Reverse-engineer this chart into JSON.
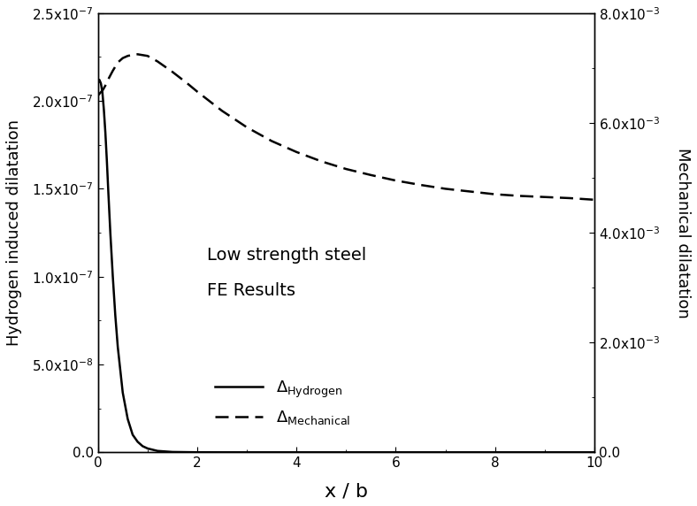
{
  "xlabel": "x / b",
  "ylabel_left": "Hydrogen induced dilatation",
  "ylabel_right": "Mechanical dilatation",
  "xlim": [
    0,
    10
  ],
  "ylim_left": [
    0,
    2.5e-07
  ],
  "ylim_right": [
    0,
    0.008
  ],
  "yticks_left": [
    0.0,
    5e-08,
    1e-07,
    1.5e-07,
    2e-07,
    2.5e-07
  ],
  "yticks_left_labels": [
    "0.0",
    "5.0x10$^{-8}$",
    "1.0x10$^{-7}$",
    "1.5x10$^{-7}$",
    "2.0x10$^{-7}$",
    "2.5x10$^{-7}$"
  ],
  "yticks_right": [
    0.0,
    0.002,
    0.004,
    0.006,
    0.008
  ],
  "yticks_right_labels": [
    "0.0",
    "2.0x10$^{-3}$",
    "4.0x10$^{-3}$",
    "6.0x10$^{-3}$",
    "8.0x10$^{-3}$"
  ],
  "xticks": [
    0,
    2,
    4,
    6,
    8,
    10
  ],
  "annotation_line1": "Low strength steel",
  "annotation_line2": "FE Results",
  "hydrogen_x": [
    0.0,
    0.03,
    0.06,
    0.09,
    0.12,
    0.15,
    0.18,
    0.21,
    0.25,
    0.3,
    0.35,
    0.4,
    0.5,
    0.6,
    0.7,
    0.8,
    0.9,
    1.0,
    1.2,
    1.5,
    2.0,
    2.5,
    3.0,
    4.0,
    5.0,
    6.0,
    7.0,
    8.0,
    9.0,
    10.0
  ],
  "hydrogen_y": [
    2.1e-07,
    2.12e-07,
    2.1e-07,
    2.05e-07,
    1.95e-07,
    1.82e-07,
    1.66e-07,
    1.48e-07,
    1.25e-07,
    1e-07,
    7.8e-08,
    6e-08,
    3.4e-08,
    1.9e-08,
    1e-08,
    6e-09,
    3.5e-09,
    2.2e-09,
    8e-10,
    2e-10,
    3e-11,
    5e-12,
    8e-13,
    2e-14,
    3e-16,
    5e-18,
    8e-20,
    1e-21,
    2e-23,
    3e-25
  ],
  "mechanical_x": [
    0.0,
    0.05,
    0.1,
    0.15,
    0.2,
    0.3,
    0.4,
    0.5,
    0.6,
    0.7,
    0.8,
    1.0,
    1.2,
    1.5,
    1.8,
    2.0,
    2.5,
    3.0,
    3.5,
    4.0,
    4.5,
    5.0,
    5.5,
    6.0,
    6.5,
    7.0,
    7.5,
    8.0,
    8.5,
    9.0,
    9.5,
    10.0
  ],
  "mechanical_y": [
    0.0065,
    0.00655,
    0.0066,
    0.00668,
    0.00678,
    0.00695,
    0.0071,
    0.00718,
    0.00722,
    0.00724,
    0.00725,
    0.00722,
    0.00712,
    0.00693,
    0.00672,
    0.00657,
    0.00622,
    0.00592,
    0.00567,
    0.00547,
    0.0053,
    0.00516,
    0.00505,
    0.00495,
    0.00487,
    0.0048,
    0.00475,
    0.0047,
    0.00467,
    0.00465,
    0.00463,
    0.0046
  ],
  "line_color": "#000000",
  "bg_color": "#ffffff",
  "fontsize_label": 13,
  "fontsize_tick": 11,
  "fontsize_annotation": 14,
  "fontsize_legend": 13
}
